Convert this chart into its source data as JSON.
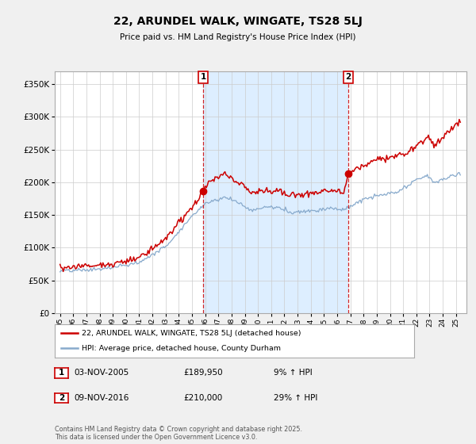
{
  "title": "22, ARUNDEL WALK, WINGATE, TS28 5LJ",
  "subtitle": "Price paid vs. HM Land Registry's House Price Index (HPI)",
  "bg_color": "#f0f0f0",
  "plot_bg_color": "#ffffff",
  "shade_color": "#ddeeff",
  "ylim": [
    0,
    370000
  ],
  "yticks": [
    0,
    50000,
    100000,
    150000,
    200000,
    250000,
    300000,
    350000
  ],
  "x_start_year": 1995,
  "x_end_year": 2025,
  "sale1_year": 2005.84,
  "sale1_price": 189950,
  "sale2_year": 2016.84,
  "sale2_price": 210000,
  "marker1": {
    "label": "1",
    "date": "03-NOV-2005",
    "price": "£189,950",
    "hpi": "9% ↑ HPI"
  },
  "marker2": {
    "label": "2",
    "date": "09-NOV-2016",
    "price": "£210,000",
    "hpi": "29% ↑ HPI"
  },
  "line1_color": "#cc0000",
  "line1_label": "22, ARUNDEL WALK, WINGATE, TS28 5LJ (detached house)",
  "line2_color": "#88aacc",
  "line2_label": "HPI: Average price, detached house, County Durham",
  "dashed_color": "#cc0000",
  "box_color": "#cc0000",
  "footer": "Contains HM Land Registry data © Crown copyright and database right 2025.\nThis data is licensed under the Open Government Licence v3.0."
}
